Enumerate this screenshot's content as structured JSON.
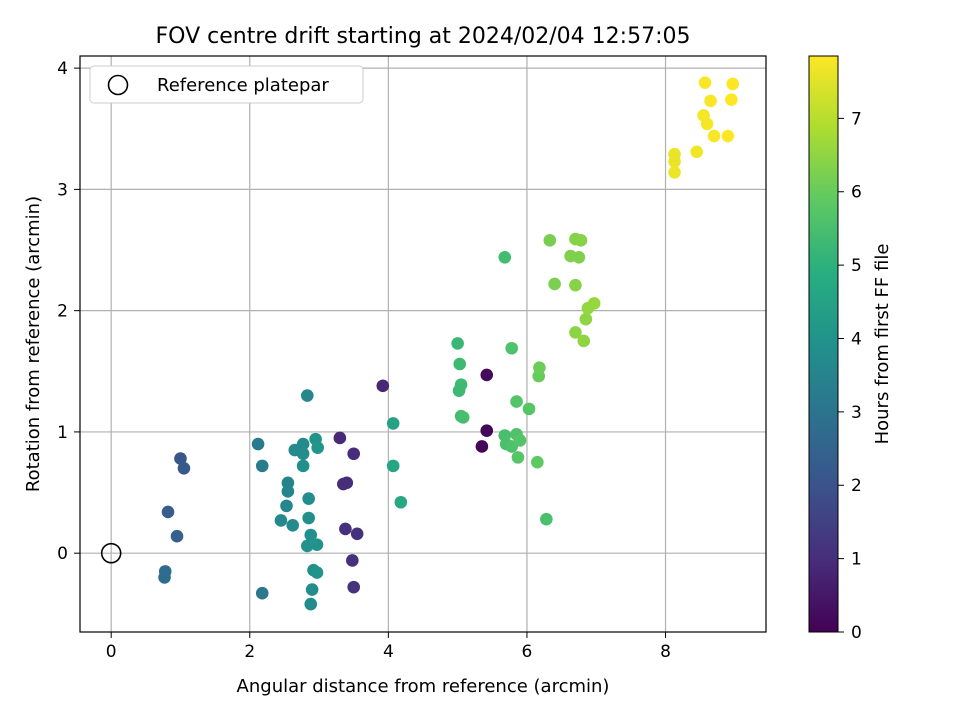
{
  "chart_data": {
    "type": "scatter",
    "title": "FOV centre drift starting at 2024/02/04 12:57:05",
    "xlabel": "Angular distance from reference (arcmin)",
    "ylabel": "Rotation from reference (arcmin)",
    "xlim": [
      -0.45,
      9.45
    ],
    "ylim": [
      -0.65,
      4.1
    ],
    "xticks": [
      0,
      2,
      4,
      6,
      8
    ],
    "yticks": [
      0,
      1,
      2,
      3,
      4
    ],
    "grid": true,
    "legend": {
      "position": "top-left",
      "entries": [
        "Reference platepar"
      ]
    },
    "reference_point": {
      "x": 0,
      "y": 0,
      "label": "Reference platepar"
    },
    "colorbar": {
      "label": "Hours from first FF file",
      "range": [
        0,
        7.85
      ],
      "ticks": [
        0,
        1,
        2,
        3,
        4,
        5,
        6,
        7
      ],
      "colormap": "viridis"
    },
    "series": [
      {
        "points": [
          [
            5.35,
            0.88,
            0.1
          ],
          [
            5.42,
            1.01,
            0.15
          ],
          [
            5.42,
            1.47,
            0.2
          ],
          [
            3.3,
            0.95,
            0.9
          ],
          [
            3.5,
            0.82,
            0.95
          ],
          [
            3.4,
            0.58,
            1.0
          ],
          [
            3.35,
            0.57,
            1.0
          ],
          [
            3.38,
            0.2,
            1.05
          ],
          [
            3.55,
            0.16,
            1.1
          ],
          [
            3.48,
            -0.06,
            1.1
          ],
          [
            3.5,
            -0.28,
            1.15
          ],
          [
            3.92,
            1.38,
            0.85
          ],
          [
            1.0,
            0.78,
            2.1
          ],
          [
            1.05,
            0.7,
            2.2
          ],
          [
            0.82,
            0.34,
            2.3
          ],
          [
            0.95,
            0.14,
            2.35
          ],
          [
            0.78,
            -0.15,
            2.75
          ],
          [
            0.77,
            -0.2,
            2.8
          ],
          [
            2.12,
            0.9,
            3.2
          ],
          [
            2.18,
            0.72,
            3.3
          ],
          [
            2.18,
            -0.33,
            3.1
          ],
          [
            2.55,
            0.58,
            3.5
          ],
          [
            2.55,
            0.51,
            3.55
          ],
          [
            2.53,
            0.39,
            3.6
          ],
          [
            2.45,
            0.27,
            3.65
          ],
          [
            2.62,
            0.23,
            3.7
          ],
          [
            2.65,
            0.85,
            3.7
          ],
          [
            2.77,
            0.9,
            3.75
          ],
          [
            2.77,
            0.82,
            3.8
          ],
          [
            2.77,
            0.72,
            3.85
          ],
          [
            2.83,
            1.3,
            3.6
          ],
          [
            2.85,
            0.45,
            3.8
          ],
          [
            2.85,
            0.29,
            3.85
          ],
          [
            2.88,
            0.15,
            3.9
          ],
          [
            2.83,
            0.06,
            3.95
          ],
          [
            2.97,
            0.07,
            4.0
          ],
          [
            2.92,
            -0.14,
            3.9
          ],
          [
            2.97,
            -0.16,
            3.95
          ],
          [
            2.9,
            -0.3,
            3.85
          ],
          [
            2.88,
            -0.42,
            3.8
          ],
          [
            2.95,
            0.94,
            4.0
          ],
          [
            2.98,
            0.87,
            4.05
          ],
          [
            4.07,
            1.07,
            4.5
          ],
          [
            4.07,
            0.72,
            4.6
          ],
          [
            4.18,
            0.42,
            4.7
          ],
          [
            5.0,
            1.73,
            5.25
          ],
          [
            5.03,
            1.56,
            5.3
          ],
          [
            5.05,
            1.39,
            5.35
          ],
          [
            5.02,
            1.34,
            5.3
          ],
          [
            5.05,
            1.13,
            5.4
          ],
          [
            5.08,
            1.12,
            5.45
          ],
          [
            5.68,
            2.44,
            5.4
          ],
          [
            5.78,
            1.69,
            5.6
          ],
          [
            5.85,
            1.25,
            5.7
          ],
          [
            6.03,
            1.19,
            5.75
          ],
          [
            5.68,
            0.97,
            5.5
          ],
          [
            5.7,
            0.9,
            5.55
          ],
          [
            5.78,
            0.88,
            5.6
          ],
          [
            5.85,
            0.98,
            5.65
          ],
          [
            5.9,
            0.93,
            5.7
          ],
          [
            5.87,
            0.79,
            5.75
          ],
          [
            6.15,
            0.75,
            5.9
          ],
          [
            6.28,
            0.28,
            5.55
          ],
          [
            6.17,
            1.46,
            6.0
          ],
          [
            6.18,
            1.53,
            6.05
          ],
          [
            6.33,
            2.58,
            6.2
          ],
          [
            6.4,
            2.22,
            6.25
          ],
          [
            6.63,
            2.45,
            6.3
          ],
          [
            6.7,
            2.59,
            6.35
          ],
          [
            6.75,
            2.44,
            6.3
          ],
          [
            6.78,
            2.58,
            6.4
          ],
          [
            6.7,
            2.21,
            6.4
          ],
          [
            6.7,
            1.82,
            6.45
          ],
          [
            6.82,
            1.75,
            6.5
          ],
          [
            6.85,
            1.93,
            6.5
          ],
          [
            6.88,
            2.02,
            6.55
          ],
          [
            6.97,
            2.06,
            6.6
          ],
          [
            8.13,
            3.29,
            7.6
          ],
          [
            8.13,
            3.23,
            7.6
          ],
          [
            8.13,
            3.14,
            7.65
          ],
          [
            8.45,
            3.31,
            7.7
          ],
          [
            8.57,
            3.88,
            7.8
          ],
          [
            8.55,
            3.61,
            7.75
          ],
          [
            8.6,
            3.54,
            7.75
          ],
          [
            8.65,
            3.73,
            7.8
          ],
          [
            8.7,
            3.44,
            7.8
          ],
          [
            8.9,
            3.44,
            7.85
          ],
          [
            8.95,
            3.74,
            7.85
          ],
          [
            8.97,
            3.87,
            7.85
          ]
        ]
      }
    ]
  }
}
